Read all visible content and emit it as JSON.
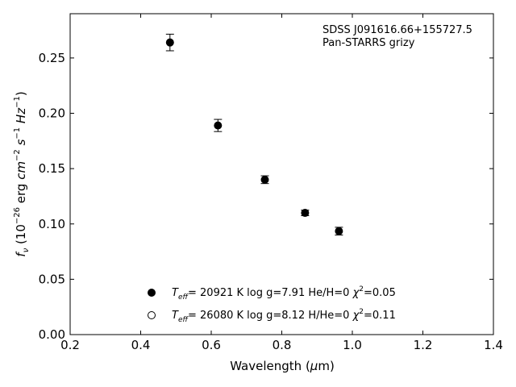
{
  "chart_data": {
    "type": "scatter",
    "xlabel": "Wavelength (μm)",
    "ylabel": "f_ν (10^−26 erg cm^−2 s^−1 Hz^−1)",
    "xlim": [
      0.2,
      1.4
    ],
    "ylim": [
      0.0,
      0.29
    ],
    "xticks": [
      "0.2",
      "0.4",
      "0.6",
      "0.8",
      "1.0",
      "1.2",
      "1.4"
    ],
    "yticks": [
      "0.00",
      "0.05",
      "0.10",
      "0.15",
      "0.20",
      "0.25"
    ],
    "annotation": [
      "SDSS J091616.66+155727.5",
      "Pan-STARRS grizy"
    ],
    "legend_position": "lower-center",
    "series": [
      {
        "marker": "filled-circle",
        "label": "T_eff= 20921 K  log g=7.91  He/H=0  χ²=0.05",
        "points": [
          {
            "x": 0.483,
            "y": 0.264,
            "yerr": 0.0075
          },
          {
            "x": 0.619,
            "y": 0.189,
            "yerr": 0.0055
          },
          {
            "x": 0.752,
            "y": 0.14,
            "yerr": 0.0035
          },
          {
            "x": 0.866,
            "y": 0.11,
            "yerr": 0.0025
          },
          {
            "x": 0.962,
            "y": 0.0935,
            "yerr": 0.0035
          }
        ]
      },
      {
        "marker": "open-circle",
        "label": "T_eff= 26080 K  log g=8.12  H/He=0  χ²=0.11",
        "points": []
      }
    ]
  }
}
